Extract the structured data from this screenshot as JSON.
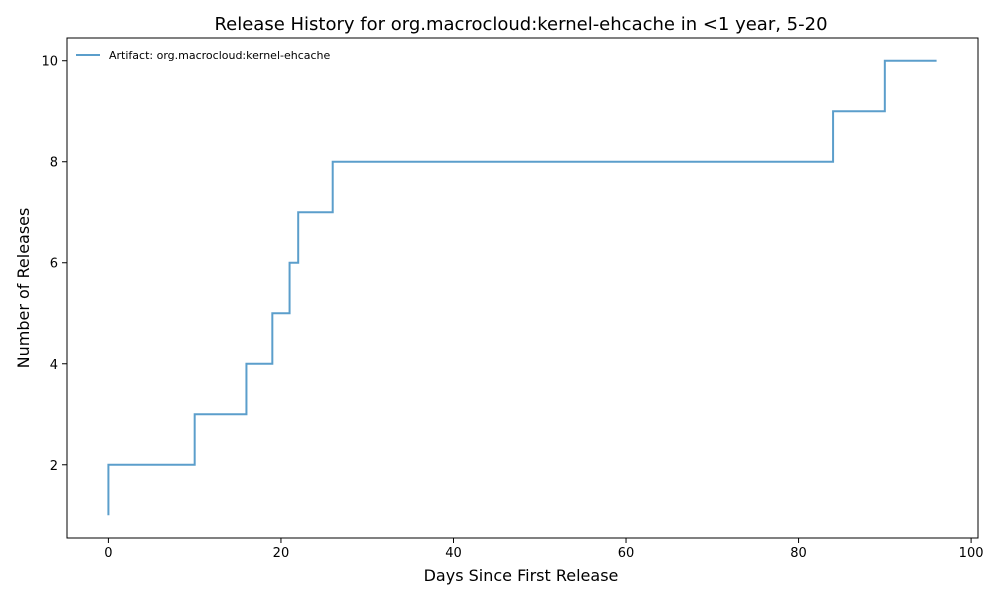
{
  "chart_data": {
    "type": "line",
    "drawstyle": "steps-post",
    "title": "Release History for org.macrocloud:kernel-ehcache in <1 year, 5-20",
    "xlabel": "Days Since First Release",
    "ylabel": "Number of Releases",
    "xlim": [
      -4.8,
      100.8
    ],
    "ylim": [
      0.55,
      10.45
    ],
    "xticks": [
      0,
      20,
      40,
      60,
      80,
      100
    ],
    "yticks": [
      2,
      4,
      6,
      8,
      10
    ],
    "grid": false,
    "legend_position": "top-left",
    "series": [
      {
        "name": "Artifact: org.macrocloud:kernel-ehcache",
        "color": "#5b9ecb",
        "x": [
          0,
          0,
          10,
          16,
          19,
          21,
          22,
          26,
          84,
          90,
          96
        ],
        "y": [
          1,
          2,
          3,
          4,
          5,
          6,
          7,
          8,
          9,
          10,
          10
        ]
      }
    ]
  }
}
